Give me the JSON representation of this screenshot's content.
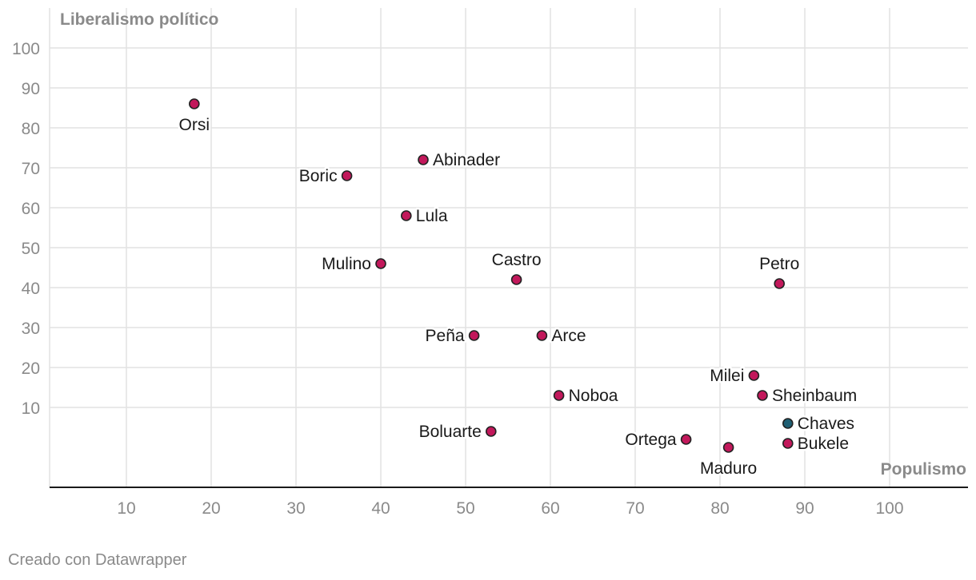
{
  "chart_data": {
    "type": "scatter",
    "ylabel": "Liberalismo político",
    "xlabel": "Populismo",
    "xlim": [
      1,
      109
    ],
    "ylim": [
      -20,
      110
    ],
    "x_ticks": [
      10,
      20,
      30,
      40,
      50,
      60,
      70,
      80,
      90,
      100
    ],
    "y_ticks": [
      10,
      20,
      30,
      40,
      50,
      60,
      70,
      80,
      90,
      100
    ],
    "grid": true,
    "points": [
      {
        "label": "Orsi",
        "x": 18,
        "y": 86,
        "color": "#c2185b",
        "label_pos": "below"
      },
      {
        "label": "Abinader",
        "x": 45,
        "y": 72,
        "color": "#c2185b",
        "label_pos": "right"
      },
      {
        "label": "Boric",
        "x": 36,
        "y": 68,
        "color": "#c2185b",
        "label_pos": "left"
      },
      {
        "label": "Lula",
        "x": 43,
        "y": 58,
        "color": "#c2185b",
        "label_pos": "right"
      },
      {
        "label": "Mulino",
        "x": 40,
        "y": 46,
        "color": "#c2185b",
        "label_pos": "left"
      },
      {
        "label": "Castro",
        "x": 56,
        "y": 42,
        "color": "#c2185b",
        "label_pos": "above"
      },
      {
        "label": "Petro",
        "x": 87,
        "y": 41,
        "color": "#c2185b",
        "label_pos": "above"
      },
      {
        "label": "Peña",
        "x": 51,
        "y": 28,
        "color": "#c2185b",
        "label_pos": "left"
      },
      {
        "label": "Arce",
        "x": 59,
        "y": 28,
        "color": "#c2185b",
        "label_pos": "right"
      },
      {
        "label": "Milei",
        "x": 84,
        "y": 18,
        "color": "#c2185b",
        "label_pos": "left"
      },
      {
        "label": "Noboa",
        "x": 61,
        "y": 13,
        "color": "#c2185b",
        "label_pos": "right"
      },
      {
        "label": "Sheinbaum",
        "x": 85,
        "y": 13,
        "color": "#c2185b",
        "label_pos": "right"
      },
      {
        "label": "Chaves",
        "x": 88,
        "y": 6,
        "color": "#1f5f73",
        "label_pos": "right"
      },
      {
        "label": "Boluarte",
        "x": 53,
        "y": 4,
        "color": "#c2185b",
        "label_pos": "left"
      },
      {
        "label": "Ortega",
        "x": 76,
        "y": 2,
        "color": "#c2185b",
        "label_pos": "left"
      },
      {
        "label": "Bukele",
        "x": 88,
        "y": 1,
        "color": "#c2185b",
        "label_pos": "right"
      },
      {
        "label": "Maduro",
        "x": 81,
        "y": 0,
        "color": "#c2185b",
        "label_pos": "below"
      }
    ]
  },
  "footer": {
    "credit": "Creado con Datawrapper"
  }
}
